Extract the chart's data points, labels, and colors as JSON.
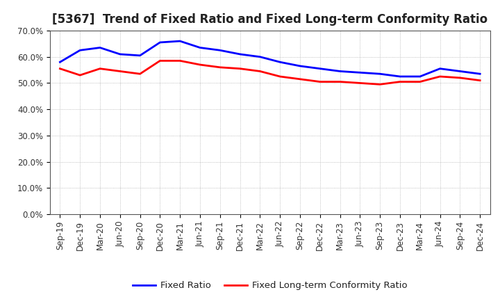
{
  "title": "[5367]  Trend of Fixed Ratio and Fixed Long-term Conformity Ratio",
  "x_labels": [
    "Sep-19",
    "Dec-19",
    "Mar-20",
    "Jun-20",
    "Sep-20",
    "Dec-20",
    "Mar-21",
    "Jun-21",
    "Sep-21",
    "Dec-21",
    "Mar-22",
    "Jun-22",
    "Sep-22",
    "Dec-22",
    "Mar-23",
    "Jun-23",
    "Sep-23",
    "Dec-23",
    "Mar-24",
    "Jun-24",
    "Sep-24",
    "Dec-24"
  ],
  "fixed_ratio": [
    58.0,
    62.5,
    63.5,
    61.0,
    60.5,
    65.5,
    66.0,
    63.5,
    62.5,
    61.0,
    60.0,
    58.0,
    56.5,
    55.5,
    54.5,
    54.0,
    53.5,
    52.5,
    52.5,
    55.5,
    54.5,
    53.5
  ],
  "fixed_lt_ratio": [
    55.5,
    53.0,
    55.5,
    54.5,
    53.5,
    58.5,
    58.5,
    57.0,
    56.0,
    55.5,
    54.5,
    52.5,
    51.5,
    50.5,
    50.5,
    50.0,
    49.5,
    50.5,
    50.5,
    52.5,
    52.0,
    51.0
  ],
  "fixed_ratio_color": "#0000FF",
  "fixed_lt_ratio_color": "#FF0000",
  "ylim": [
    0,
    70
  ],
  "yticks": [
    0,
    10,
    20,
    30,
    40,
    50,
    60,
    70
  ],
  "legend_fixed_ratio": "Fixed Ratio",
  "legend_fixed_lt_ratio": "Fixed Long-term Conformity Ratio",
  "background_color": "#ffffff",
  "grid_color": "#999999",
  "title_fontsize": 12,
  "axis_fontsize": 8.5,
  "legend_fontsize": 9.5
}
